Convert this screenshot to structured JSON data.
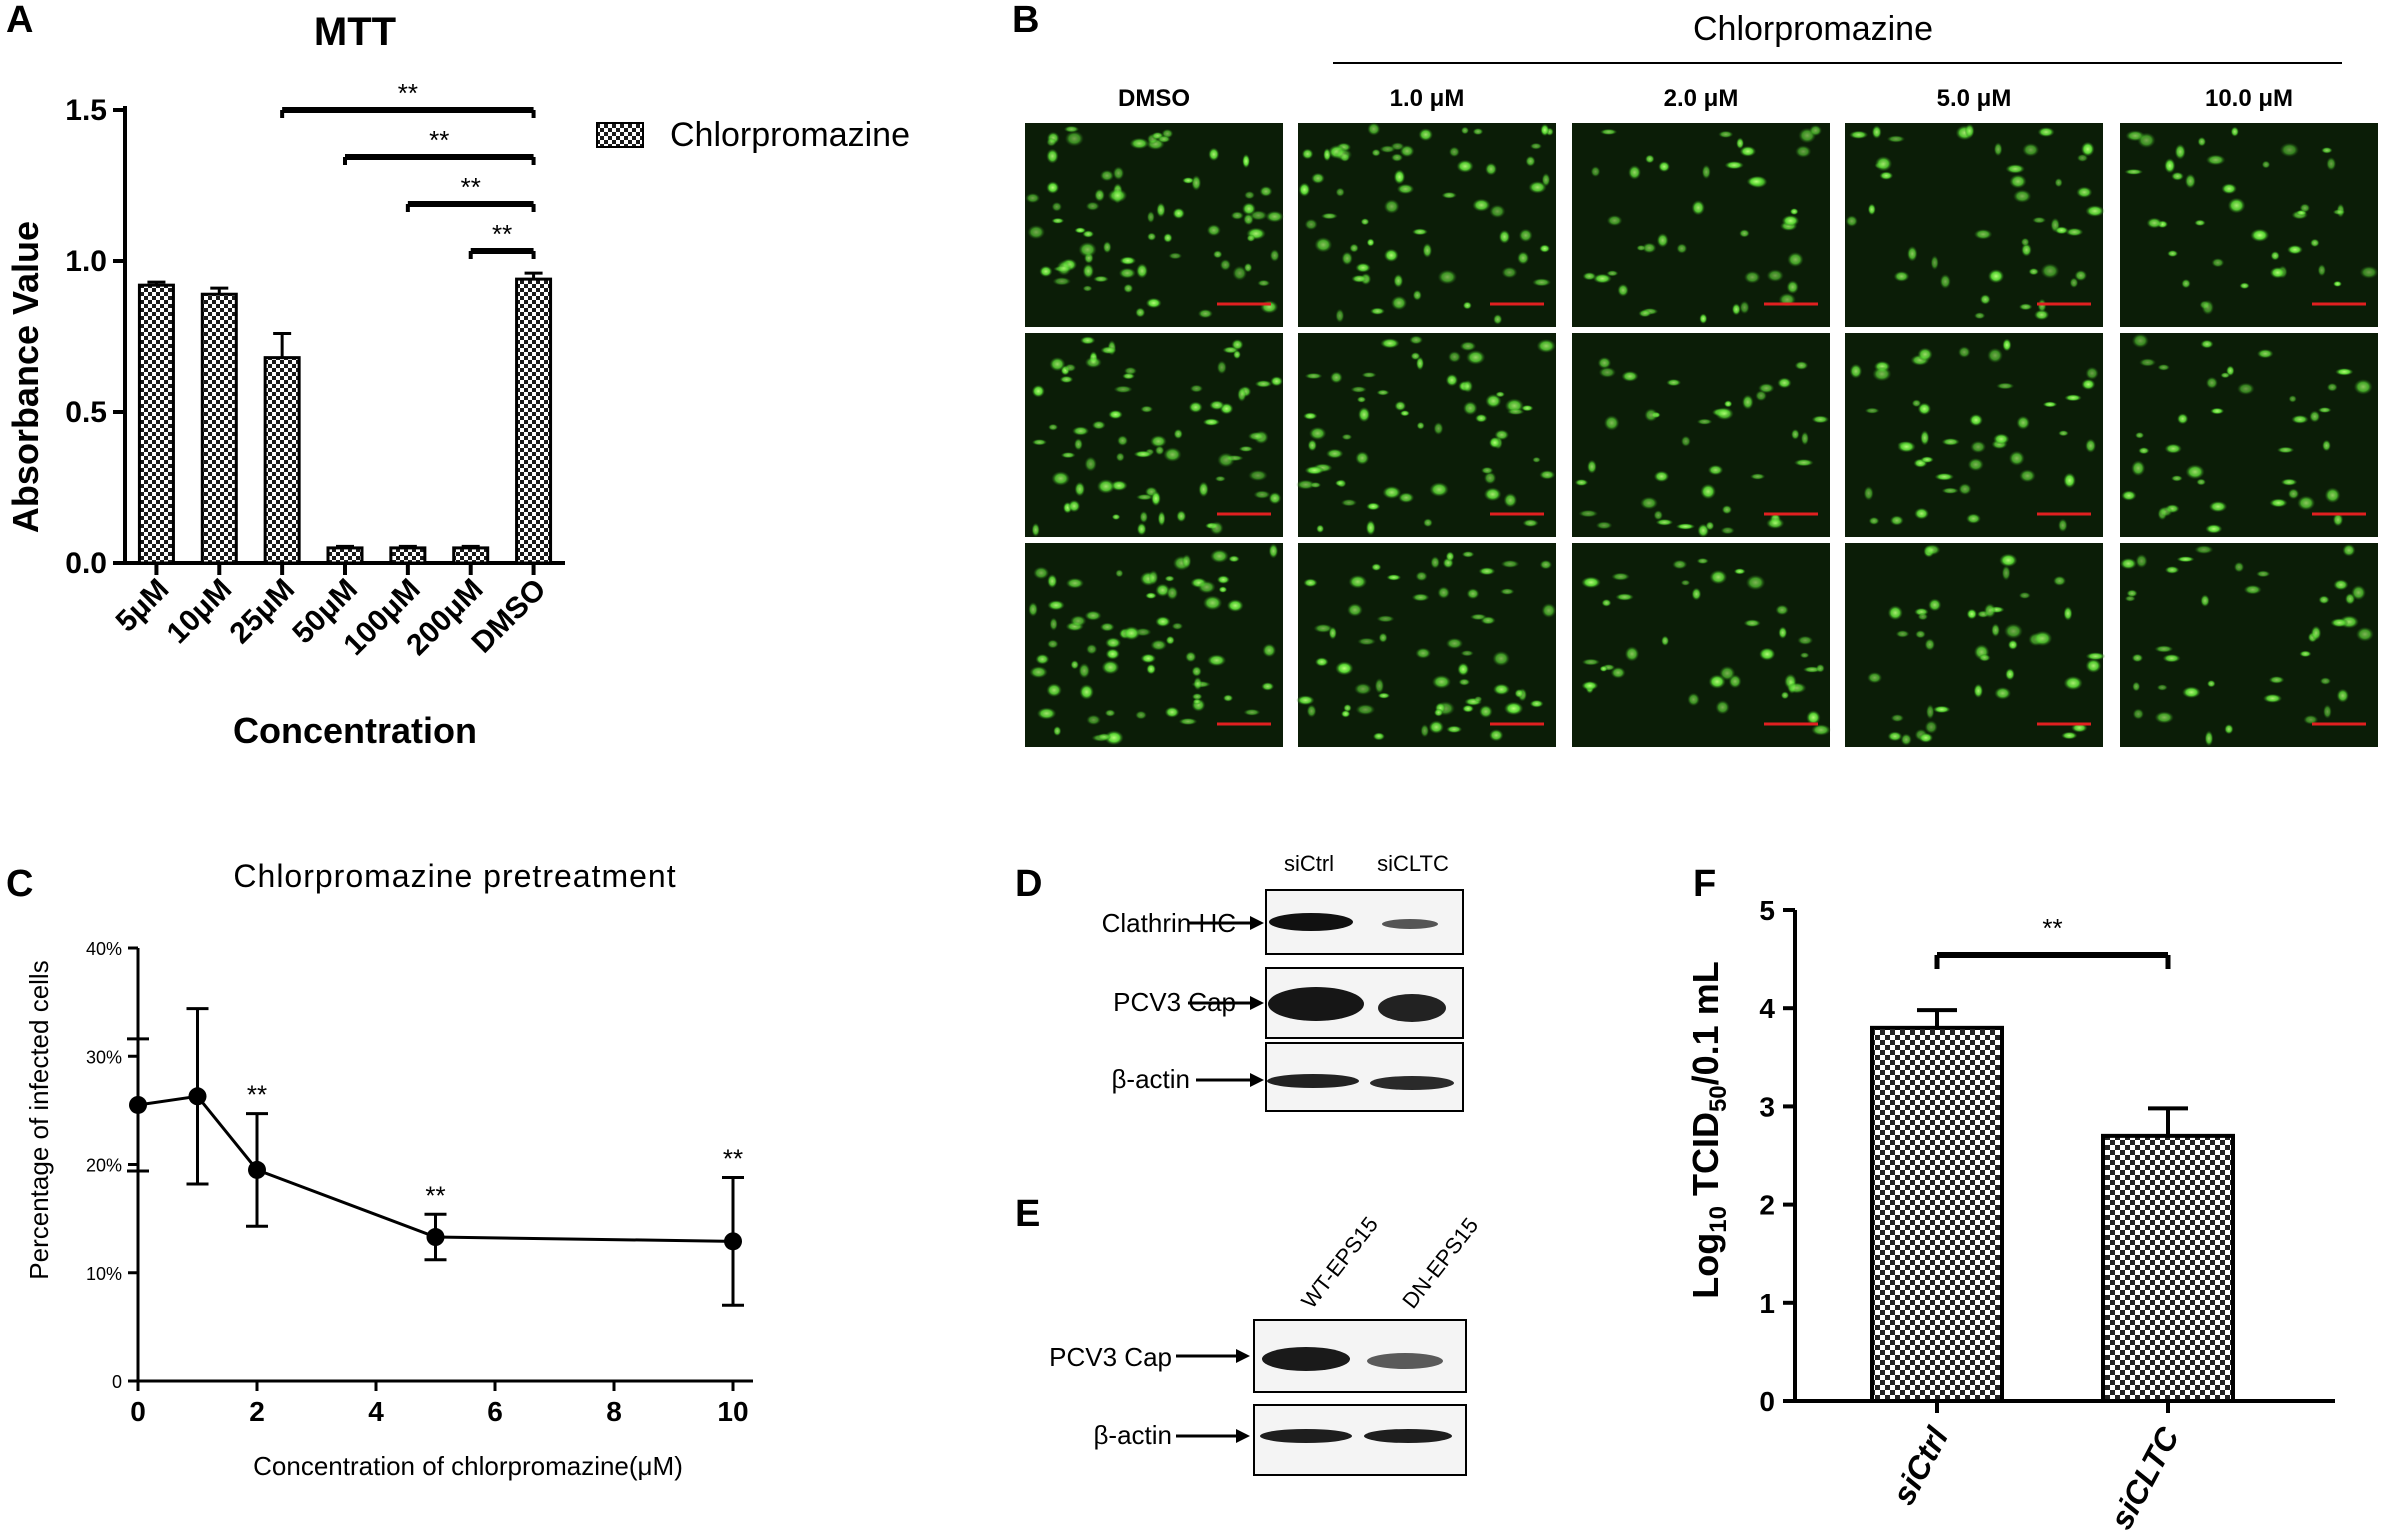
{
  "panel_labels": {
    "A": "A",
    "B": "B",
    "C": "C",
    "D": "D",
    "E": "E",
    "F": "F"
  },
  "colors": {
    "axis": "#000000",
    "bar_fill": "checkered black/white",
    "micrograph_bg": "#0a1a06",
    "cell_green": "#5ee03c",
    "scale_bar": "#e02020"
  },
  "chart_data": [
    {
      "panel": "A",
      "type": "bar",
      "title": "MTT",
      "xlabel": "Concentration",
      "ylabel": "Absorbance Value",
      "categories": [
        "5μM",
        "10μM",
        "25μM",
        "50μM",
        "100μM",
        "200μM",
        "DMSO"
      ],
      "series": [
        {
          "name": "Chlorpromazine",
          "values": [
            0.92,
            0.89,
            0.68,
            0.05,
            0.05,
            0.05,
            0.94
          ],
          "errors": [
            0.01,
            0.02,
            0.08,
            0.005,
            0.005,
            0.005,
            0.02
          ]
        }
      ],
      "ylim": [
        0,
        1.5
      ],
      "yticks": [
        "0.0",
        "0.5",
        "1.0",
        "1.5"
      ],
      "yticks_values": [
        0,
        0.5,
        1.0,
        1.5
      ],
      "legend": "top-right",
      "significance": [
        {
          "from": "25μM",
          "to": "DMSO",
          "label": "**"
        },
        {
          "from": "50μM",
          "to": "DMSO",
          "label": "**"
        },
        {
          "from": "100μM",
          "to": "DMSO",
          "label": "**"
        },
        {
          "from": "200μM",
          "to": "DMSO",
          "label": "**"
        }
      ]
    },
    {
      "panel": "C",
      "type": "line",
      "title": "Chlorpromazine  pretreatment",
      "xlabel": "Concentration of chlorpromazine(μM)",
      "ylabel": "Percentage of infected cells",
      "x": [
        0,
        1,
        2,
        5,
        10
      ],
      "y": [
        25.5,
        26.3,
        19.5,
        13.3,
        12.9
      ],
      "err": [
        6.1,
        8.1,
        5.2,
        2.1,
        5.9
      ],
      "annotations": [
        {
          "x": 2,
          "label": "**"
        },
        {
          "x": 5,
          "label": "**"
        },
        {
          "x": 10,
          "label": "**"
        }
      ],
      "xlim": [
        0,
        10
      ],
      "ylim": [
        0,
        40
      ],
      "xticks": [
        0,
        2,
        4,
        6,
        8,
        10
      ],
      "yticks": [
        "0",
        "10%",
        "20%",
        "30%",
        "40%"
      ],
      "yticks_values": [
        0,
        10,
        20,
        30,
        40
      ]
    },
    {
      "panel": "F",
      "type": "bar",
      "ylabel_main": "Log",
      "ylabel_sub1": "10",
      "ylabel_mid": " TCID",
      "ylabel_sub2": "50",
      "ylabel_tail": "/0.1 mL",
      "categories": [
        "siCtrl",
        "siCLTC"
      ],
      "values": [
        3.8,
        2.7
      ],
      "errors": [
        0.18,
        0.28
      ],
      "ylim": [
        0,
        5
      ],
      "yticks": [
        "0",
        "1",
        "2",
        "3",
        "4",
        "5"
      ],
      "yticks_values": [
        0,
        1,
        2,
        3,
        4,
        5
      ],
      "significance": [
        {
          "from": "siCtrl",
          "to": "siCLTC",
          "label": "**"
        }
      ]
    }
  ],
  "panelB": {
    "header": "Chlorpromazine",
    "columns": [
      "DMSO",
      "1.0 μM",
      "2.0 μM",
      "5.0 μM",
      "10.0 μM"
    ],
    "rows": 3
  },
  "panelD": {
    "lanes": [
      "siCtrl",
      "siCLTC"
    ],
    "bands": [
      "Clathrin HC",
      "PCV3 Cap",
      "β-actin"
    ]
  },
  "panelE": {
    "lanes": [
      "WT-EPS15",
      "DN-EPS15"
    ],
    "bands": [
      "PCV3 Cap",
      "β-actin"
    ]
  }
}
